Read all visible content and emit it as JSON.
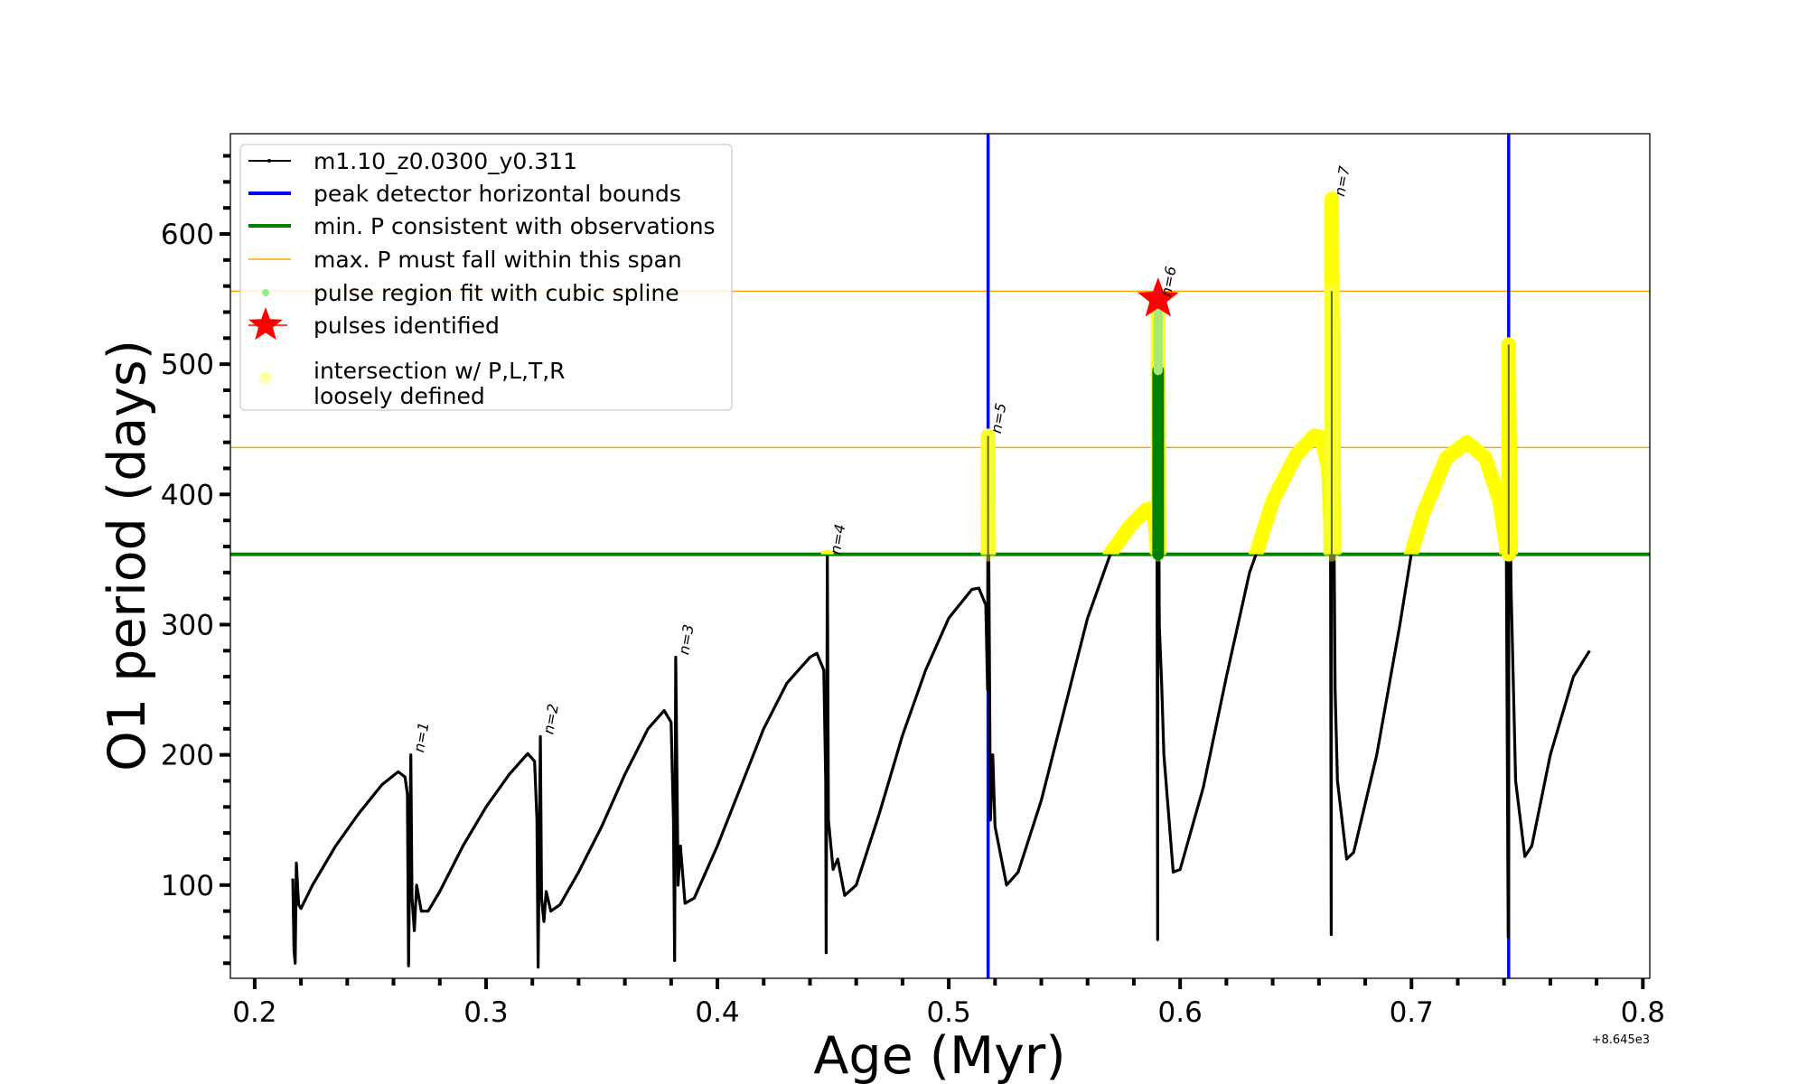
{
  "chart_data": {
    "type": "line",
    "xlabel": "Age (Myr)",
    "ylabel": "O1 period (days)",
    "x_offset_label": "+8.645e3",
    "xlim": [
      0.1895,
      0.803
    ],
    "ylim": [
      28.4,
      677
    ],
    "xticks": [
      0.2,
      0.3,
      0.4,
      0.5,
      0.6,
      0.7,
      0.8
    ],
    "xtick_labels": [
      "0.2",
      "0.3",
      "0.4",
      "0.5",
      "0.6",
      "0.7",
      "0.8"
    ],
    "yticks": [
      100,
      200,
      300,
      400,
      500,
      600
    ],
    "ytick_labels": [
      "100",
      "200",
      "300",
      "400",
      "500",
      "600"
    ],
    "grid": false,
    "legend_placement": "top-left",
    "legend": [
      {
        "label": "m1.10_z0.0300_y0.311",
        "kind": "line-marker",
        "color": "#000000"
      },
      {
        "label": "peak detector horizontal bounds",
        "kind": "line-thick",
        "color": "#0000ff"
      },
      {
        "label": "min. P consistent with observations",
        "kind": "line-thick",
        "color": "#008000"
      },
      {
        "label": "max. P must fall within this span",
        "kind": "line-thin",
        "color": "#ffa500"
      },
      {
        "label": "pulse region fit with cubic spline",
        "kind": "dot",
        "color": "#90ee90"
      },
      {
        "label": "pulses identified",
        "kind": "star",
        "color": "#ff0000"
      },
      {
        "label": "intersection w/ P,L,T,R",
        "label2": "loosely defined",
        "kind": "bigdot",
        "color": "#ffffb0"
      }
    ],
    "series": [
      {
        "name": "m1.10_z0.0300_y0.311",
        "color": "#000000",
        "points": [
          [
            0.2165,
            105
          ],
          [
            0.217,
            50
          ],
          [
            0.2175,
            40
          ],
          [
            0.218,
            117
          ],
          [
            0.219,
            85
          ],
          [
            0.22,
            82
          ],
          [
            0.225,
            100
          ],
          [
            0.235,
            130
          ],
          [
            0.245,
            155
          ],
          [
            0.255,
            177
          ],
          [
            0.262,
            187
          ],
          [
            0.265,
            183
          ],
          [
            0.266,
            170
          ],
          [
            0.2665,
            38
          ],
          [
            0.2675,
            200
          ],
          [
            0.268,
            90
          ],
          [
            0.269,
            65
          ],
          [
            0.27,
            100
          ],
          [
            0.272,
            80
          ],
          [
            0.275,
            80
          ],
          [
            0.28,
            95
          ],
          [
            0.29,
            130
          ],
          [
            0.3,
            160
          ],
          [
            0.31,
            185
          ],
          [
            0.318,
            201
          ],
          [
            0.321,
            195
          ],
          [
            0.322,
            150
          ],
          [
            0.3225,
            37
          ],
          [
            0.3235,
            214
          ],
          [
            0.324,
            90
          ],
          [
            0.325,
            72
          ],
          [
            0.326,
            95
          ],
          [
            0.328,
            80
          ],
          [
            0.332,
            85
          ],
          [
            0.34,
            110
          ],
          [
            0.35,
            145
          ],
          [
            0.36,
            185
          ],
          [
            0.37,
            220
          ],
          [
            0.377,
            234
          ],
          [
            0.38,
            225
          ],
          [
            0.381,
            150
          ],
          [
            0.3815,
            42
          ],
          [
            0.382,
            275
          ],
          [
            0.383,
            100
          ],
          [
            0.384,
            130
          ],
          [
            0.386,
            86
          ],
          [
            0.39,
            90
          ],
          [
            0.4,
            130
          ],
          [
            0.41,
            175
          ],
          [
            0.42,
            220
          ],
          [
            0.43,
            255
          ],
          [
            0.44,
            275
          ],
          [
            0.443,
            278
          ],
          [
            0.446,
            265
          ],
          [
            0.4468,
            180
          ],
          [
            0.447,
            48
          ],
          [
            0.4475,
            352
          ],
          [
            0.448,
            150
          ],
          [
            0.45,
            112
          ],
          [
            0.452,
            120
          ],
          [
            0.455,
            92
          ],
          [
            0.46,
            100
          ],
          [
            0.47,
            155
          ],
          [
            0.48,
            215
          ],
          [
            0.49,
            265
          ],
          [
            0.5,
            305
          ],
          [
            0.51,
            327
          ],
          [
            0.513,
            328
          ],
          [
            0.516,
            315
          ],
          [
            0.5168,
            250
          ],
          [
            0.517,
            445
          ],
          [
            0.518,
            150
          ],
          [
            0.519,
            200
          ],
          [
            0.52,
            145
          ],
          [
            0.525,
            100
          ],
          [
            0.53,
            110
          ],
          [
            0.54,
            165
          ],
          [
            0.55,
            235
          ],
          [
            0.56,
            305
          ],
          [
            0.57,
            355
          ],
          [
            0.578,
            375
          ],
          [
            0.585,
            388
          ],
          [
            0.587,
            389
          ],
          [
            0.589,
            380
          ],
          [
            0.59,
            360
          ],
          [
            0.5903,
            58
          ],
          [
            0.5905,
            550
          ],
          [
            0.591,
            300
          ],
          [
            0.592,
            255
          ],
          [
            0.593,
            200
          ],
          [
            0.597,
            110
          ],
          [
            0.6,
            112
          ],
          [
            0.61,
            175
          ],
          [
            0.62,
            260
          ],
          [
            0.63,
            340
          ],
          [
            0.633,
            355
          ],
          [
            0.64,
            395
          ],
          [
            0.65,
            430
          ],
          [
            0.658,
            445
          ],
          [
            0.661,
            444
          ],
          [
            0.664,
            420
          ],
          [
            0.665,
            380
          ],
          [
            0.6653,
            62
          ],
          [
            0.6655,
            627
          ],
          [
            0.667,
            250
          ],
          [
            0.668,
            180
          ],
          [
            0.672,
            120
          ],
          [
            0.675,
            125
          ],
          [
            0.685,
            200
          ],
          [
            0.695,
            300
          ],
          [
            0.7,
            355
          ],
          [
            0.705,
            385
          ],
          [
            0.715,
            428
          ],
          [
            0.724,
            440
          ],
          [
            0.732,
            428
          ],
          [
            0.738,
            395
          ],
          [
            0.741,
            360
          ],
          [
            0.7418,
            60
          ],
          [
            0.742,
            515
          ],
          [
            0.743,
            330
          ],
          [
            0.745,
            180
          ],
          [
            0.749,
            122
          ],
          [
            0.752,
            130
          ],
          [
            0.76,
            200
          ],
          [
            0.77,
            260
          ],
          [
            0.777,
            280
          ]
        ]
      }
    ],
    "hlines": [
      {
        "y": 354,
        "color": "#008000",
        "name": "min-period-line"
      },
      {
        "y": 436,
        "color": "#ffa500",
        "name": "max-period-lower-line"
      },
      {
        "y": 556,
        "color": "#ffa500",
        "name": "max-period-upper-line"
      }
    ],
    "vlines": [
      {
        "x": 0.517,
        "color": "#0000ff"
      },
      {
        "x": 0.742,
        "color": "#0000ff"
      }
    ],
    "intersection_threshold": 354,
    "pulse_spikes": [
      {
        "x": 0.517,
        "y0": 354,
        "y1": 445,
        "style": "pale"
      },
      {
        "x": 0.5905,
        "y0": 354,
        "y1": 548,
        "style": "pale"
      },
      {
        "x": 0.5905,
        "y0": 354,
        "y1": 495,
        "style": "green"
      },
      {
        "x": 0.6655,
        "y0": 354,
        "y1": 556,
        "style": "pale"
      },
      {
        "x": 0.742,
        "y0": 354,
        "y1": 515,
        "style": "solid"
      }
    ],
    "pulses_identified": [
      {
        "x": 0.5905,
        "y": 550
      }
    ],
    "annotations": [
      {
        "text": "n=1",
        "x": 0.2675,
        "y": 200
      },
      {
        "text": "n=2",
        "x": 0.3235,
        "y": 214
      },
      {
        "text": "n=3",
        "x": 0.382,
        "y": 275
      },
      {
        "text": "n=4",
        "x": 0.4475,
        "y": 352
      },
      {
        "text": "n=5",
        "x": 0.517,
        "y": 445
      },
      {
        "text": "n=6",
        "x": 0.5905,
        "y": 550
      },
      {
        "text": "n=7",
        "x": 0.6655,
        "y": 627
      }
    ]
  }
}
